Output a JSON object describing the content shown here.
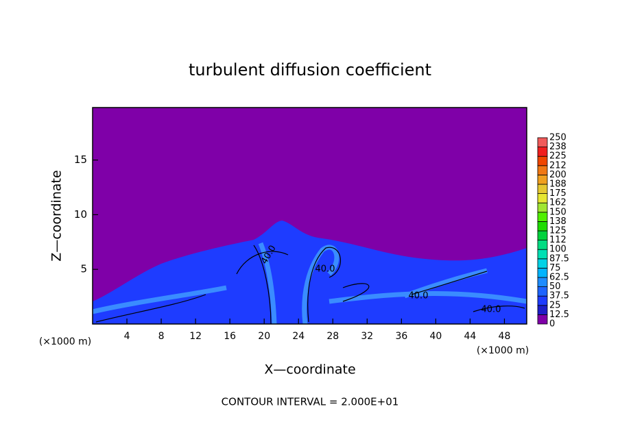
{
  "chart_data": {
    "type": "contour",
    "title": "turbulent diffusion coefficient",
    "x_label": "X—coordinate",
    "y_label": "Z—coordinate",
    "x_unit_left": "(×1000 m)",
    "x_unit_right": "(×1000 m)",
    "footer": "CONTOUR INTERVAL = 2.000E+01",
    "xlim": [
      0,
      50.6
    ],
    "ylim": [
      0,
      19.8
    ],
    "xticks": [
      4,
      8,
      12,
      16,
      20,
      24,
      28,
      32,
      36,
      40,
      44,
      48
    ],
    "yticks": [
      5,
      10,
      15
    ],
    "contour_labels": [
      {
        "value": 40,
        "label": "40.0"
      },
      {
        "value": 40,
        "label": "40.0"
      },
      {
        "value": 40,
        "label": "40.0"
      },
      {
        "value": 40,
        "label": "40.0"
      }
    ],
    "colorbar": {
      "levels": [
        0,
        12.5,
        25,
        37.5,
        50,
        62.5,
        75,
        87.5,
        100,
        112,
        125,
        138,
        150,
        162,
        175,
        188,
        200,
        212,
        225,
        238,
        250
      ],
      "colors": [
        "#7f00a8",
        "#1e1ec8",
        "#1e3cff",
        "#1e64ff",
        "#1e8cff",
        "#00b4ff",
        "#00d2e6",
        "#00e0b4",
        "#00dc82",
        "#00d23c",
        "#1edc00",
        "#50f000",
        "#a0e632",
        "#e6e632",
        "#e6c832",
        "#f0a020",
        "#f07814",
        "#f04600",
        "#f01e1e",
        "#f05a5a",
        "#f08c8c"
      ]
    }
  }
}
